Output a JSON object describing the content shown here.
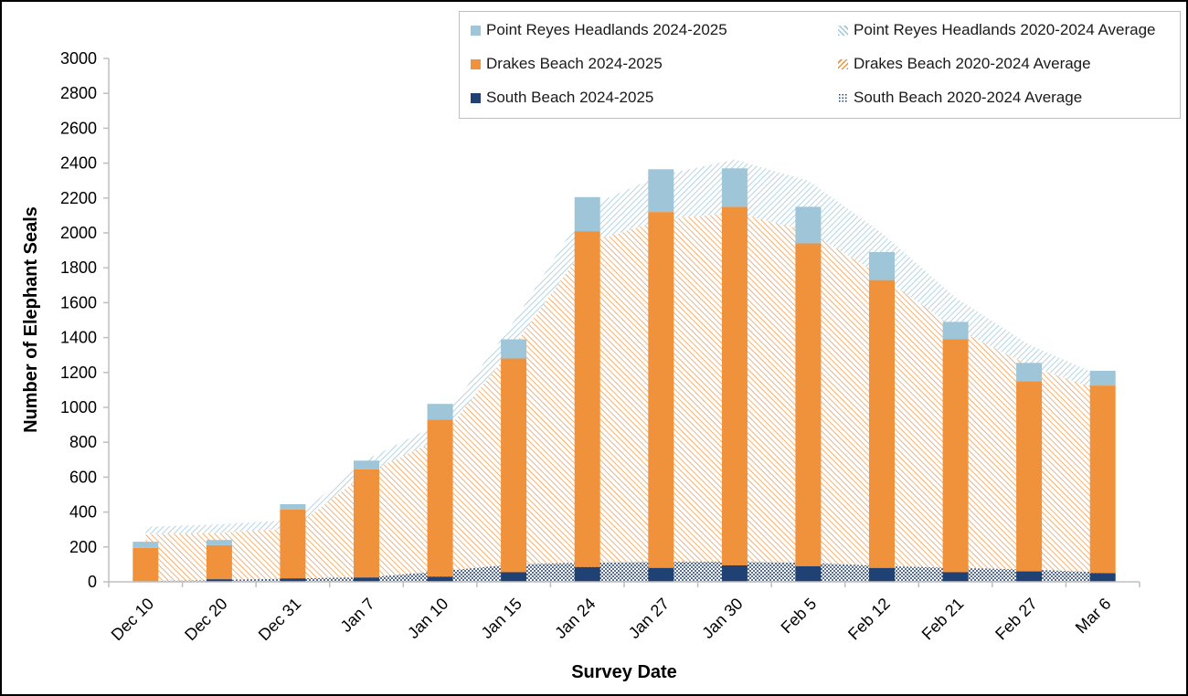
{
  "figure": {
    "y_axis_title": "Number of Elephant Seals",
    "x_axis_title": "Survey Date"
  },
  "legend": {
    "items": [
      {
        "label": "Point Reyes Headlands 2024-2025",
        "swatch": "solid-lightblue"
      },
      {
        "label": "Point Reyes Headlands 2020-2024 Average",
        "swatch": "hatch-lightblue"
      },
      {
        "label": "Drakes Beach 2024-2025",
        "swatch": "solid-orange"
      },
      {
        "label": "Drakes Beach 2020-2024 Average",
        "swatch": "hatch-orange"
      },
      {
        "label": "South Beach 2024-2025",
        "swatch": "solid-navy"
      },
      {
        "label": "South Beach 2020-2024 Average",
        "swatch": "dots-navy"
      }
    ]
  },
  "colors": {
    "lightblue": "#9ec6d8",
    "orange": "#f0913c",
    "navy": "#1f4173",
    "axis_line": "#bfbfbf",
    "text": "#000000"
  },
  "chart_data": {
    "type": "bar",
    "subtype": "stacked-bars-2024-2025-over-stacked-area-2020-2024-average",
    "categories": [
      "Dec 10",
      "Dec 20",
      "Dec 31",
      "Jan 7",
      "Jan 10",
      "Jan 15",
      "Jan 24",
      "Jan 27",
      "Jan 30",
      "Feb 5",
      "Feb 12",
      "Feb 21",
      "Feb 27",
      "Mar 6"
    ],
    "bar_series": [
      {
        "name": "South Beach 2024-2025",
        "color_key": "navy",
        "values": [
          0,
          15,
          20,
          25,
          30,
          55,
          85,
          80,
          95,
          90,
          80,
          55,
          60,
          50
        ]
      },
      {
        "name": "Drakes Beach 2024-2025",
        "color_key": "orange",
        "values": [
          195,
          195,
          395,
          620,
          900,
          1225,
          1925,
          2040,
          2055,
          1850,
          1650,
          1335,
          1090,
          1075
        ]
      },
      {
        "name": "Point Reyes Headlands 2024-2025",
        "color_key": "lightblue",
        "values": [
          35,
          30,
          30,
          50,
          90,
          110,
          195,
          245,
          220,
          210,
          160,
          100,
          105,
          85
        ]
      }
    ],
    "bar_totals": [
      230,
      240,
      445,
      695,
      1020,
      1390,
      2205,
      2365,
      2370,
      2150,
      1890,
      1490,
      1255,
      1210
    ],
    "area_series": [
      {
        "name": "South Beach 2020-2024 Average",
        "pattern": "dots-navy",
        "values": [
          5,
          10,
          20,
          25,
          60,
          100,
          110,
          115,
          115,
          110,
          90,
          80,
          70,
          55
        ]
      },
      {
        "name": "Drakes Beach 2020-2024 Average",
        "pattern": "hatch-orange",
        "values": [
          265,
          270,
          285,
          600,
          760,
          1250,
          1830,
          1960,
          2000,
          1900,
          1660,
          1370,
          1170,
          1035
        ]
      },
      {
        "name": "Point Reyes Headlands 2020-2024 Average",
        "pattern": "hatch-lightblue",
        "values": [
          45,
          50,
          50,
          75,
          90,
          140,
          210,
          255,
          305,
          290,
          250,
          180,
          120,
          85
        ]
      }
    ],
    "area_totals": [
      315,
      330,
      355,
      700,
      910,
      1490,
      2150,
      2330,
      2420,
      2300,
      2000,
      1630,
      1360,
      1175
    ],
    "title": "",
    "xlabel": "Survey Date",
    "ylabel": "Number of Elephant Seals",
    "ylim": [
      0,
      3000
    ],
    "ytick_step": 200,
    "grid": false,
    "legend_position": "top-right",
    "x_tick_label_rotation_deg": -45
  }
}
